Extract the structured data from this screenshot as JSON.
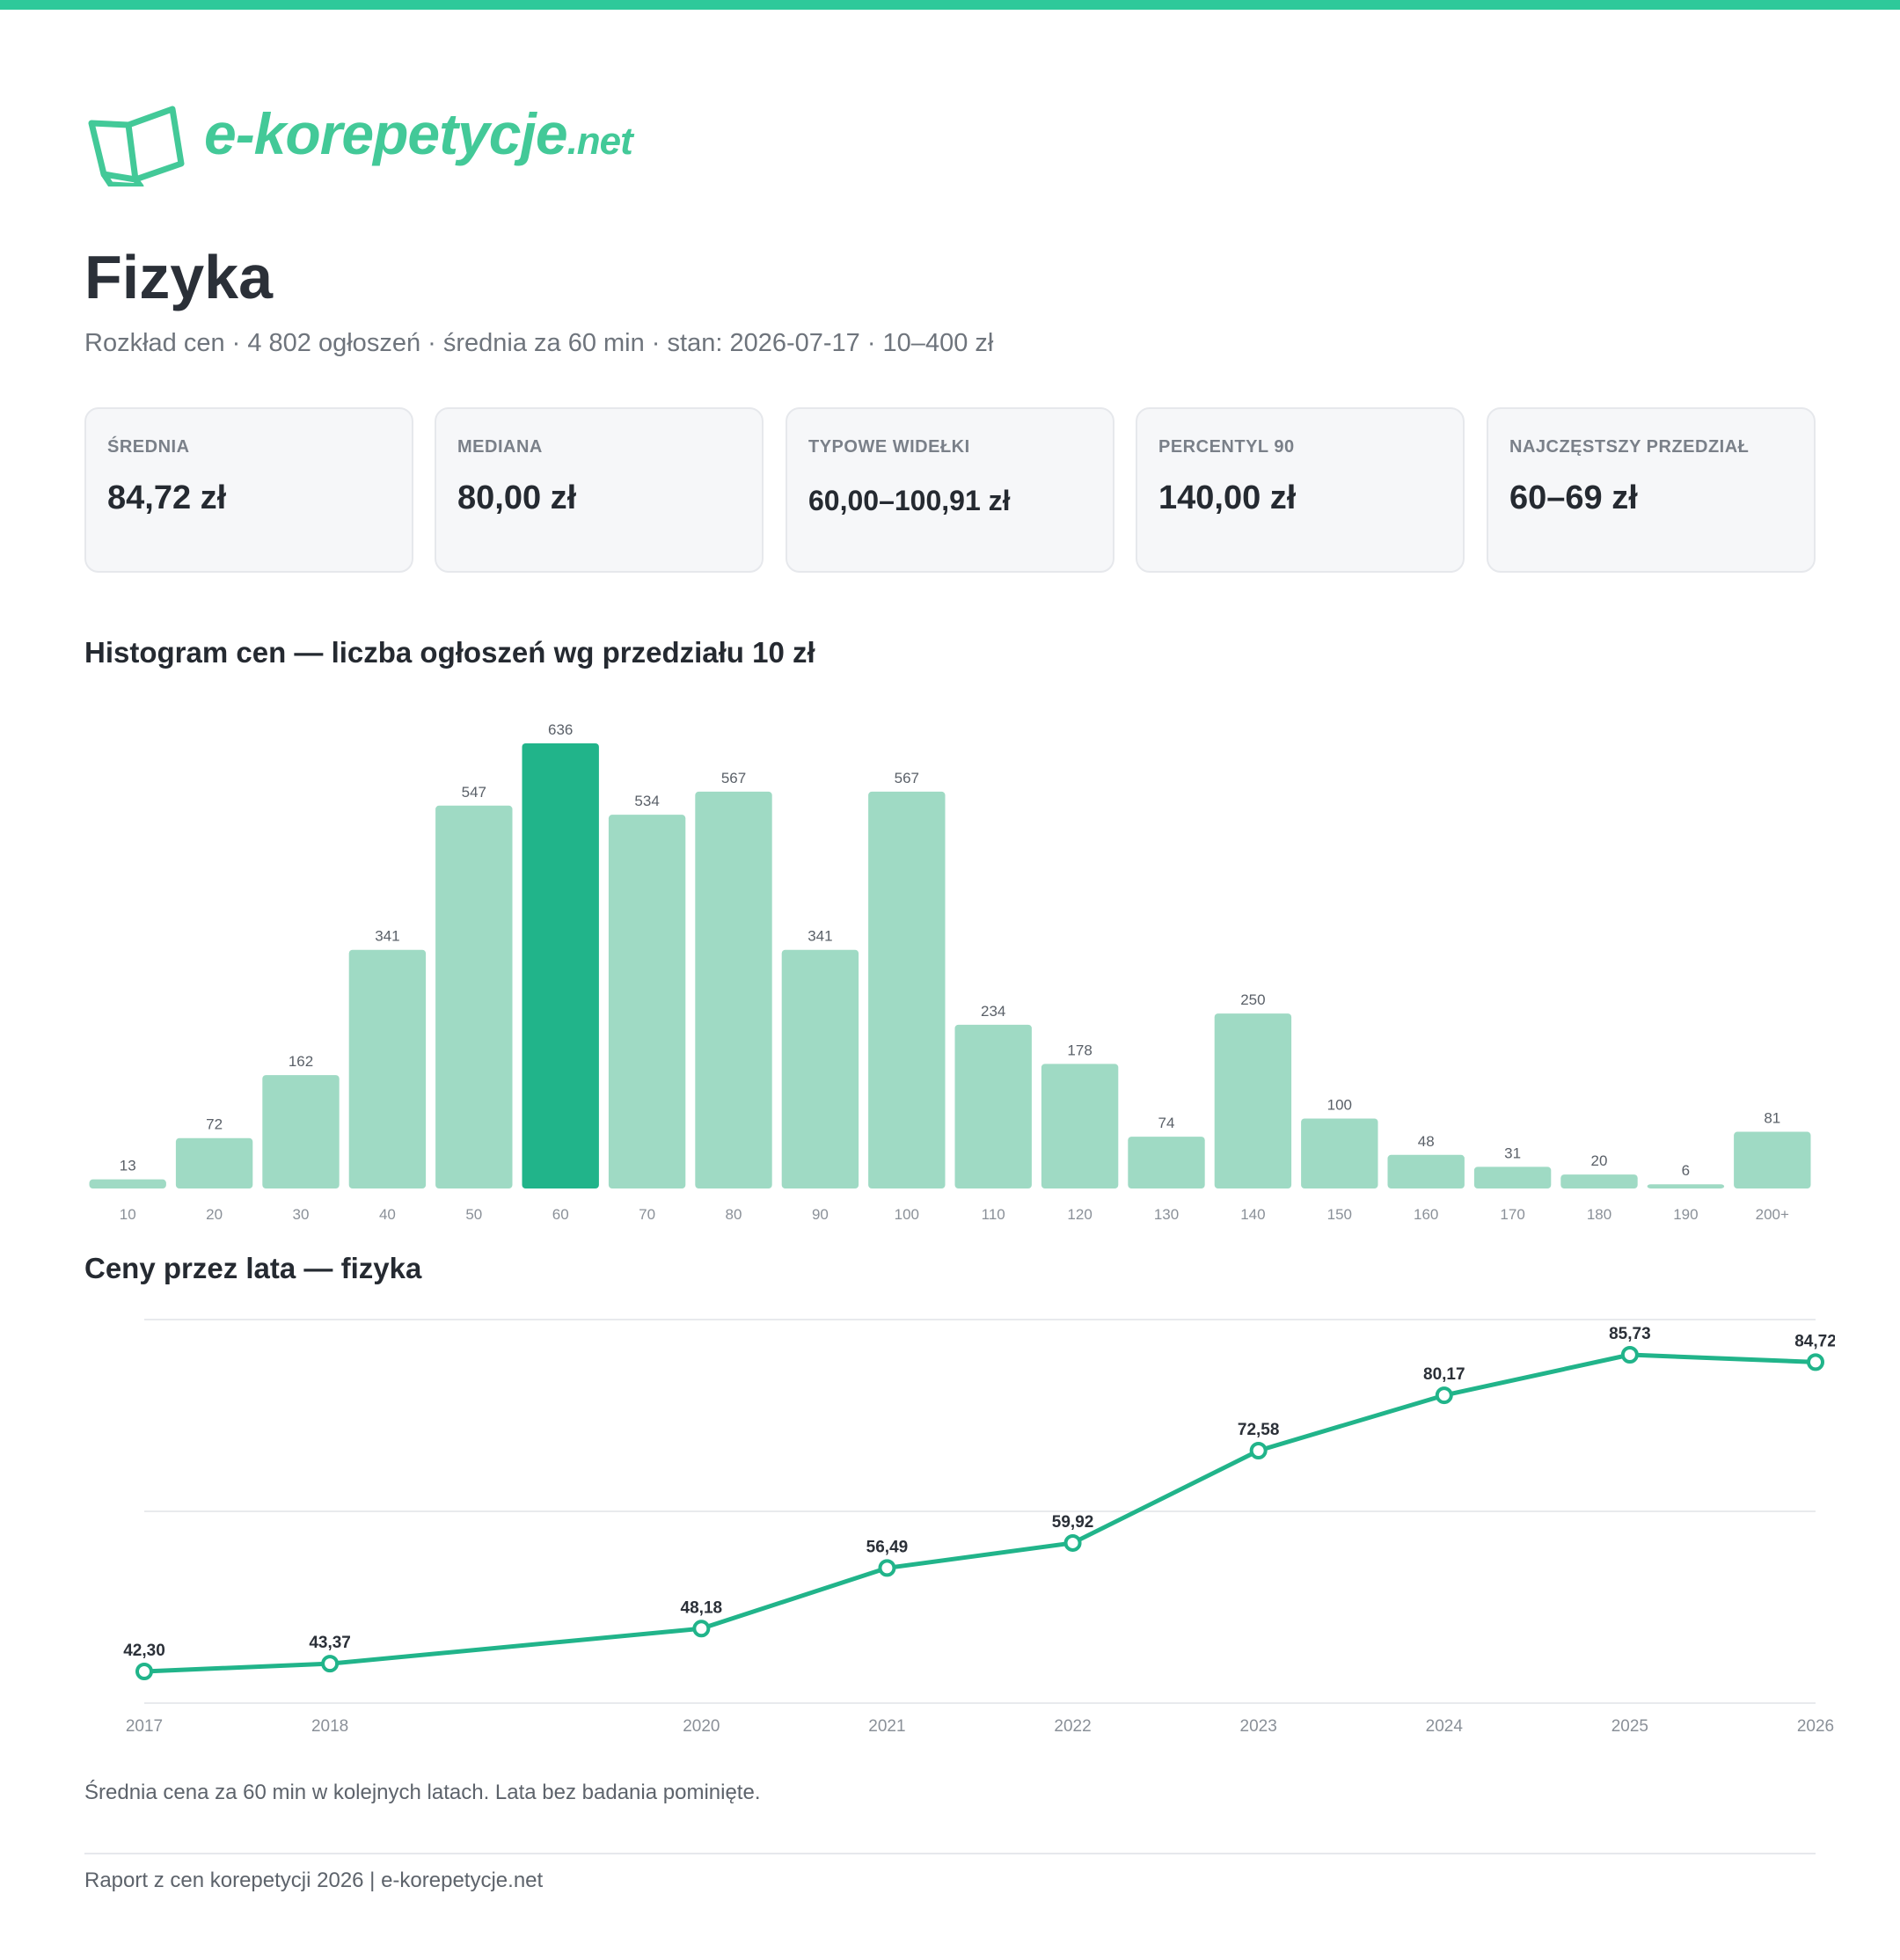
{
  "brand": {
    "logo_text": "e-korepetycje",
    "logo_tld": ".net",
    "accent": "#2ec99a",
    "bar_color": "#9fdac4",
    "bar_highlight": "#21b48a",
    "line_color": "#21b48a"
  },
  "header": {
    "title": "Fizyka",
    "subtitle": "Rozkład cen · 4 802 ogłoszeń · średnia za 60 min · stan: 2026-07-17 · 10–400 zł"
  },
  "stats": [
    {
      "label": "ŚREDNIA",
      "value": "84,72 zł"
    },
    {
      "label": "MEDIANA",
      "value": "80,00 zł"
    },
    {
      "label": "TYPOWE WIDEŁKI",
      "value": "60,00–100,91 zł"
    },
    {
      "label": "PERCENTYL 90",
      "value": "140,00 zł"
    },
    {
      "label": "NAJCZĘSTSZY PRZEDZIAŁ",
      "value": "60–69 zł"
    }
  ],
  "sections": {
    "histogram_title": "Histogram cen — liczba ogłoszeń wg przedziału 10 zł",
    "line_title": "Ceny przez lata — fizyka"
  },
  "caption": "Średnia cena za 60 min w kolejnych latach. Lata bez badania pominięte.",
  "footer": "Raport z cen korepetycji 2026 | e-korepetycje.net",
  "chart_data": [
    {
      "type": "bar",
      "title": "Histogram cen — liczba ogłoszeń wg przedziału 10 zł",
      "categories": [
        "10",
        "20",
        "30",
        "40",
        "50",
        "60",
        "70",
        "80",
        "90",
        "100",
        "110",
        "120",
        "130",
        "140",
        "150",
        "160",
        "170",
        "180",
        "190",
        "200+"
      ],
      "values": [
        13,
        72,
        162,
        341,
        547,
        636,
        534,
        567,
        341,
        567,
        234,
        178,
        74,
        250,
        100,
        48,
        31,
        20,
        6,
        81
      ],
      "highlight_category": "60",
      "ylim": [
        0,
        636
      ],
      "grid": false,
      "data_labels": true
    },
    {
      "type": "line",
      "title": "Ceny przez lata — fizyka",
      "x": [
        2017,
        2018,
        2020,
        2021,
        2022,
        2023,
        2024,
        2025,
        2026
      ],
      "x_labels": [
        "2017",
        "2018",
        "2020",
        "2021",
        "2022",
        "2023",
        "2024",
        "2025",
        "2026"
      ],
      "y": [
        42.3,
        43.37,
        48.18,
        56.49,
        59.92,
        72.58,
        80.17,
        85.73,
        84.72
      ],
      "y_labels": [
        "42,30",
        "43,37",
        "48,18",
        "56,49",
        "59,92",
        "72,58",
        "80,17",
        "85,73",
        "84,72"
      ],
      "ylim": [
        42.3,
        85.73
      ],
      "grid": true,
      "markers": "hollow-circle"
    }
  ]
}
